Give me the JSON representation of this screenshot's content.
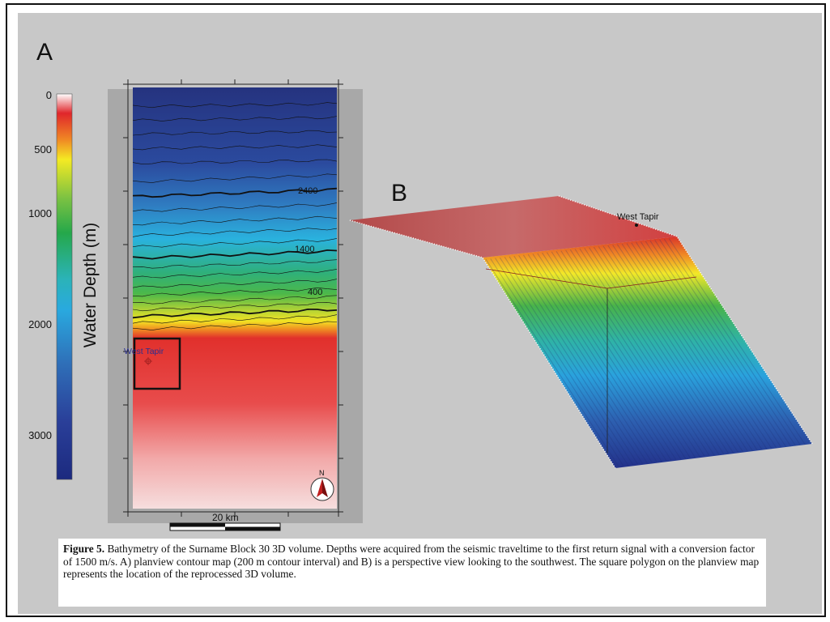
{
  "figure": {
    "panel_a_label": "A",
    "panel_b_label": "B",
    "colorbar": {
      "title": "Water Depth (m)",
      "ticks": [
        "0",
        "500",
        "1000",
        "2000",
        "3000"
      ]
    },
    "map": {
      "contour_labels": [
        "2400",
        "1400",
        "400"
      ],
      "site_label": "West Tapir",
      "scale_bar_label": "20 km",
      "north_label": "N"
    },
    "perspective": {
      "site_label": "West Tapir"
    },
    "caption": {
      "label": "Figure 5.",
      "text": "Bathymetry of the Surname Block 30 3D volume.  Depths were acquired from the seismic traveltime to the first return signal with a conversion factor of 1500 m/s.  A) planview contour map (200 m contour interval) and B) is a perspective view looking to the southwest. The square polygon on the planview map represents the location of the reprocessed 3D volume."
    }
  },
  "colors": {
    "background_panel": "#c8c8c8",
    "deep_blue": "#1f2d8a",
    "mid_cyan": "#29a9df",
    "green": "#25a84a",
    "yellow": "#f4ea23",
    "red": "#e0262b",
    "shallow_white": "#ffffff"
  }
}
